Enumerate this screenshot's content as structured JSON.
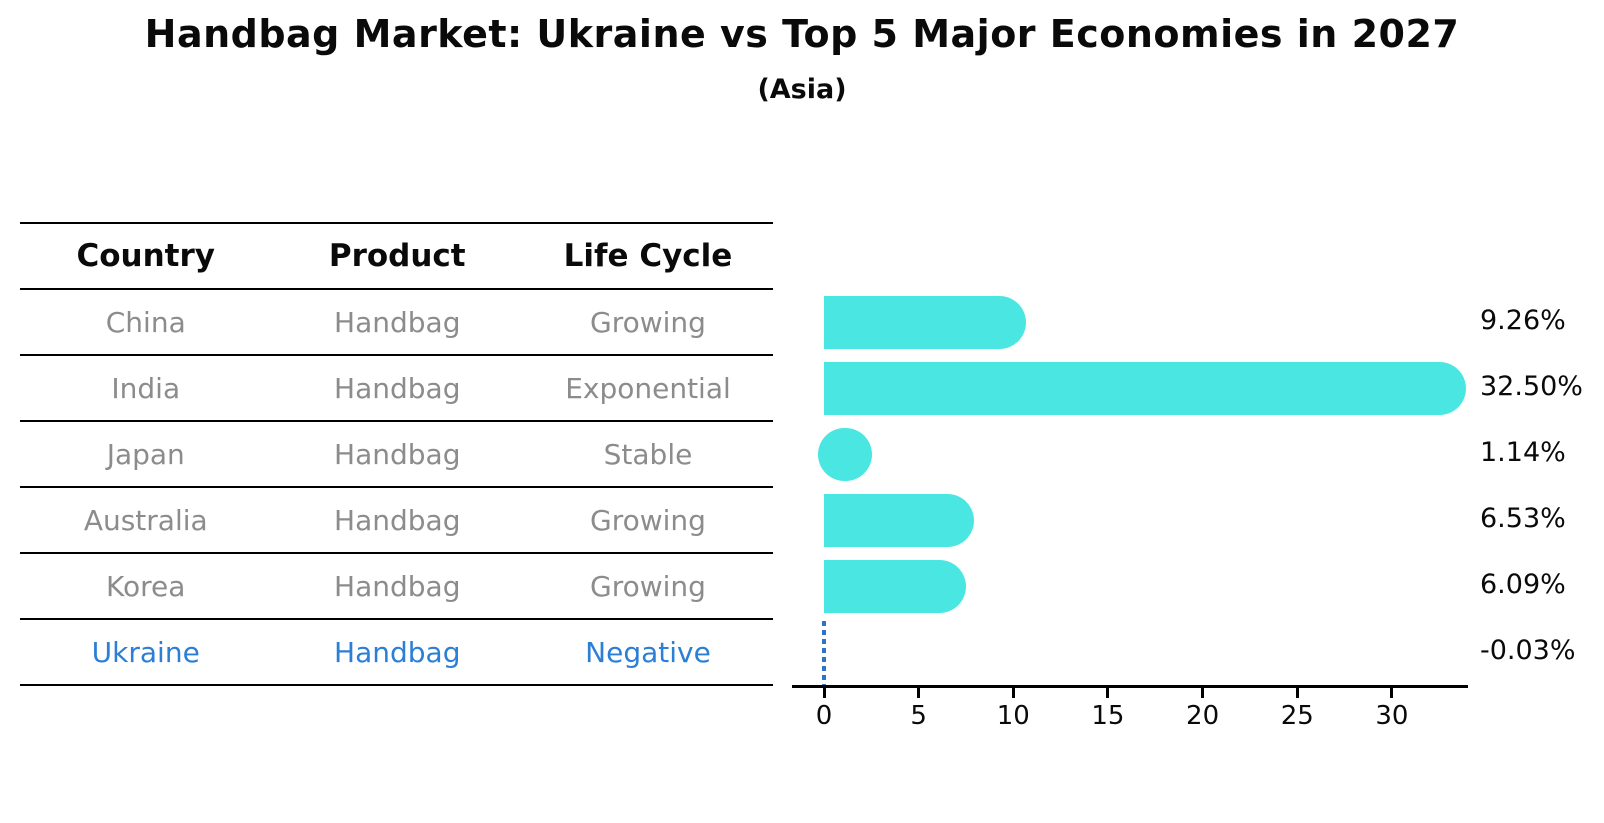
{
  "title": "Handbag Market: Ukraine vs Top 5 Major Economies in 2027",
  "subtitle": "(Asia)",
  "table": {
    "headers": [
      "Country",
      "Product",
      "Life Cycle"
    ],
    "rows": [
      {
        "country": "China",
        "product": "Handbag",
        "life_cycle": "Growing",
        "highlight": false
      },
      {
        "country": "India",
        "product": "Handbag",
        "life_cycle": "Exponential",
        "highlight": false
      },
      {
        "country": "Japan",
        "product": "Handbag",
        "life_cycle": "Stable",
        "highlight": false
      },
      {
        "country": "Australia",
        "product": "Handbag",
        "life_cycle": "Growing",
        "highlight": false
      },
      {
        "country": "Korea",
        "product": "Handbag",
        "life_cycle": "Growing",
        "highlight": false
      },
      {
        "country": "Ukraine",
        "product": "Handbag",
        "life_cycle": "Negative",
        "highlight": true
      }
    ]
  },
  "chart_data": {
    "type": "bar",
    "orientation": "horizontal",
    "categories": [
      "China",
      "India",
      "Japan",
      "Australia",
      "Korea",
      "Ukraine"
    ],
    "values": [
      9.26,
      32.5,
      1.14,
      6.53,
      6.09,
      -0.03
    ],
    "value_labels": [
      "9.26%",
      "32.50%",
      "1.14%",
      "6.53%",
      "6.09%",
      "-0.03%"
    ],
    "x_ticks": [
      0,
      5,
      10,
      15,
      20,
      25,
      30
    ],
    "xlim": [
      -1.7,
      34.1
    ],
    "grid": false,
    "legend": false,
    "bar_color": "#4ae7e2",
    "highlight": {
      "index": 5,
      "style": "dashed-vertical-line-at-zero",
      "color": "#2b74c8"
    }
  },
  "colors": {
    "bar_cyan": "#4ae7e2",
    "highlight_text_blue": "#2b7fd6",
    "highlight_line_blue": "#2b74c8",
    "row_text_gray": "#8c8c8c",
    "heading_black": "#0a0a0a"
  }
}
